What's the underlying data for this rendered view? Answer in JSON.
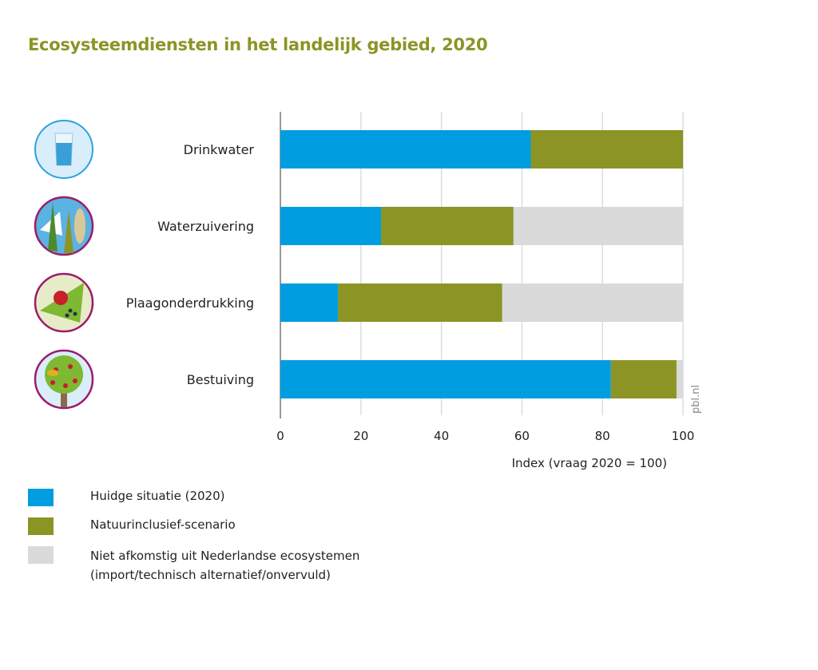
{
  "chart_data": {
    "type": "bar",
    "stacked": true,
    "orientation": "horizontal",
    "title": "Ecosysteemdiensten in het landelijk gebied, 2020",
    "xlabel": "Index (vraag 2020 = 100)",
    "ylabel": "",
    "xlim": [
      0,
      100
    ],
    "xticks": [
      "0",
      "20",
      "40",
      "60",
      "80",
      "100"
    ],
    "grid": true,
    "categories": [
      "Drinkwater",
      "Waterzuivering",
      "Plaagonderdrukking",
      "Bestuiving"
    ],
    "icons": [
      "water-glass-icon",
      "water-purification-icon",
      "ladybug-icon",
      "fruit-tree-bee-icon"
    ],
    "series": [
      {
        "name": "Huidge situatie (2020)",
        "color": "#009de0",
        "values": [
          62.2,
          25.0,
          14.3,
          82.1
        ]
      },
      {
        "name": "Natuurinclusief-scenario",
        "color": "#8c9425",
        "values": [
          37.8,
          32.9,
          40.8,
          16.3
        ]
      },
      {
        "name": "Niet afkomstig uit Nederlandse ecosystemen",
        "name_line2": "(import/technisch alternatief/onvervuld)",
        "color": "#d9dad9",
        "values": [
          0,
          42.1,
          44.9,
          1.6
        ]
      }
    ],
    "legend_position": "bottom-left",
    "source": "pbl.nl"
  }
}
